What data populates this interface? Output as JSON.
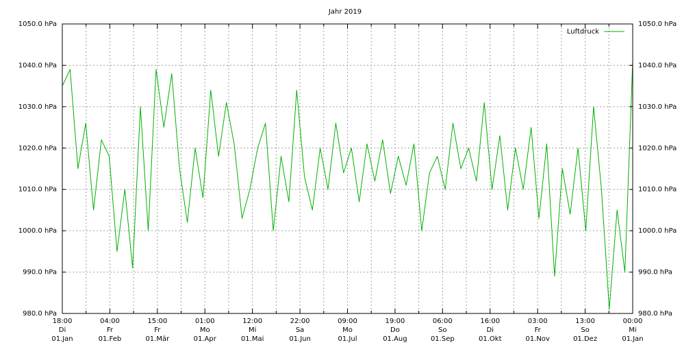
{
  "chart_data": {
    "type": "line",
    "title": "Jahr 2019",
    "xlabel": "",
    "ylabel": "",
    "unit": "hPa",
    "ylim": [
      980,
      1050
    ],
    "y_ticks": [
      "980.0 hPa",
      "990.0 hPa",
      "1000.0 hPa",
      "1010.0 hPa",
      "1020.0 hPa",
      "1030.0 hPa",
      "1040.0 hPa",
      "1050.0 hPa"
    ],
    "x_ticks": [
      {
        "time": "18:00",
        "weekday": "Di",
        "date": "01.Jan"
      },
      {
        "time": "04:00",
        "weekday": "Fr",
        "date": "01.Feb"
      },
      {
        "time": "15:00",
        "weekday": "Fr",
        "date": "01.Mär"
      },
      {
        "time": "01:00",
        "weekday": "Mo",
        "date": "01.Apr"
      },
      {
        "time": "12:00",
        "weekday": "Mi",
        "date": "01.Mai"
      },
      {
        "time": "22:00",
        "weekday": "Sa",
        "date": "01.Jun"
      },
      {
        "time": "09:00",
        "weekday": "Mo",
        "date": "01.Jul"
      },
      {
        "time": "19:00",
        "weekday": "Do",
        "date": "01.Aug"
      },
      {
        "time": "06:00",
        "weekday": "So",
        "date": "01.Sep"
      },
      {
        "time": "16:00",
        "weekday": "Di",
        "date": "01.Okt"
      },
      {
        "time": "03:00",
        "weekday": "Fr",
        "date": "01.Nov"
      },
      {
        "time": "13:00",
        "weekday": "So",
        "date": "01.Dez"
      },
      {
        "time": "00:00",
        "weekday": "Mi",
        "date": "01.Jan"
      }
    ],
    "grid": true,
    "legend_position": "top-right",
    "series": [
      {
        "name": "Luftdruck",
        "color": "#00b000",
        "x": [
          "01.Jan",
          "05.Jan",
          "10.Jan",
          "15.Jan",
          "20.Jan",
          "25.Jan",
          "30.Jan",
          "04.Feb",
          "09.Feb",
          "14.Feb",
          "19.Feb",
          "24.Feb",
          "01.Mär",
          "06.Mär",
          "11.Mär",
          "16.Mär",
          "21.Mär",
          "26.Mär",
          "31.Mär",
          "05.Apr",
          "10.Apr",
          "15.Apr",
          "20.Apr",
          "25.Apr",
          "30.Apr",
          "05.Mai",
          "10.Mai",
          "15.Mai",
          "20.Mai",
          "25.Mai",
          "30.Mai",
          "04.Jun",
          "09.Jun",
          "14.Jun",
          "19.Jun",
          "24.Jun",
          "29.Jun",
          "04.Jul",
          "09.Jul",
          "14.Jul",
          "19.Jul",
          "24.Jul",
          "29.Jul",
          "03.Aug",
          "08.Aug",
          "13.Aug",
          "18.Aug",
          "23.Aug",
          "28.Aug",
          "02.Sep",
          "07.Sep",
          "12.Sep",
          "17.Sep",
          "22.Sep",
          "27.Sep",
          "02.Okt",
          "07.Okt",
          "12.Okt",
          "17.Okt",
          "22.Okt",
          "27.Okt",
          "01.Nov",
          "06.Nov",
          "11.Nov",
          "16.Nov",
          "21.Nov",
          "26.Nov",
          "01.Dez",
          "06.Dez",
          "11.Dez",
          "16.Dez",
          "21.Dez",
          "26.Dez",
          "31.Dez"
        ],
        "values": [
          1035,
          1039,
          1015,
          1026,
          1005,
          1022,
          1018,
          995,
          1010,
          991,
          1030,
          1000,
          1039,
          1025,
          1038,
          1015,
          1002,
          1020,
          1008,
          1034,
          1018,
          1031,
          1021,
          1003,
          1010,
          1020,
          1026,
          1000,
          1018,
          1007,
          1034,
          1013,
          1005,
          1020,
          1010,
          1026,
          1014,
          1020,
          1007,
          1021,
          1012,
          1022,
          1009,
          1018,
          1011,
          1021,
          1000,
          1014,
          1018,
          1010,
          1026,
          1015,
          1020,
          1012,
          1031,
          1010,
          1023,
          1005,
          1020,
          1010,
          1025,
          1003,
          1021,
          989,
          1015,
          1004,
          1020,
          1000,
          1030,
          1010,
          981,
          1005,
          990,
          1041
        ]
      }
    ]
  }
}
